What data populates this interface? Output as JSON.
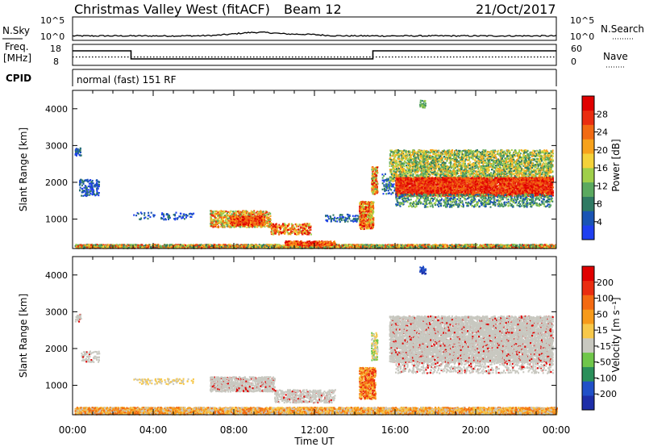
{
  "header": {
    "title": "Christmas Valley West (fitACF)",
    "beam": "Beam 12",
    "date": "21/Oct/2017"
  },
  "colors": {
    "power_scale": [
      "#1f3ff0",
      "#1a54b4",
      "#2f7a63",
      "#5aa95f",
      "#9fcf4a",
      "#f4d23a",
      "#f7a21c",
      "#f26a12",
      "#ea2d10",
      "#e00000"
    ],
    "velocity_scale": [
      "#1d2ea8",
      "#2050c8",
      "#2a8f5a",
      "#6fc64a",
      "#c8c8c0",
      "#f7c84a",
      "#f79a1a",
      "#f46a12",
      "#ea2d10",
      "#e00000"
    ],
    "ground_scatter": "#c8c8c0"
  },
  "chart_data": [
    {
      "type": "line",
      "panel": "noise",
      "series_labels": {
        "left": "N.Sky",
        "right": "N.Search"
      },
      "left_ticks": [
        "10^5",
        "10^0"
      ],
      "right_ticks": [
        "10^5",
        "10^0"
      ],
      "x_range_hours": [
        0,
        24
      ]
    },
    {
      "type": "line",
      "panel": "frequency",
      "left_label_lines": [
        "Freq.",
        "[MHz]"
      ],
      "left_ticks": [
        "18",
        "8"
      ],
      "right_label": "Nave",
      "right_ticks": [
        "60",
        "0"
      ],
      "frequency_mhz": [
        {
          "x": 0,
          "y": 15
        },
        {
          "x": 2.9,
          "y": 15
        },
        {
          "x": 2.9,
          "y": 10
        },
        {
          "x": 14.9,
          "y": 10
        },
        {
          "x": 14.9,
          "y": 15
        },
        {
          "x": 24,
          "y": 15
        }
      ],
      "nave_level": 24
    },
    {
      "type": "text",
      "panel": "cpid",
      "label": "CPID",
      "value": "normal (fast) 151 RF"
    },
    {
      "type": "heatmap",
      "panel": "power",
      "ylabel": "Slant Range [km]",
      "y_ticks": [
        1000,
        2000,
        3000,
        4000
      ],
      "ylim": [
        200,
        4500
      ],
      "colorbar_label": "Power [dB]",
      "colorbar_ticks": [
        "4",
        "8",
        "12",
        "16",
        "20",
        "24",
        "28"
      ]
    },
    {
      "type": "heatmap",
      "panel": "velocity",
      "ylabel": "Slant Range [km]",
      "y_ticks": [
        1000,
        2000,
        3000,
        4000
      ],
      "ylim": [
        200,
        4500
      ],
      "colorbar_label": "Velocity [m s⁻¹]",
      "colorbar_ticks": [
        "200",
        "100",
        "50",
        "15",
        "-15",
        "-50",
        "-100",
        "-200"
      ]
    }
  ],
  "x_axis": {
    "xlabel": "Time UT",
    "tick_labels": [
      "00:00",
      "04:00",
      "08:00",
      "12:00",
      "16:00",
      "20:00",
      "00:00"
    ],
    "x_range_hours": [
      0,
      24
    ]
  }
}
